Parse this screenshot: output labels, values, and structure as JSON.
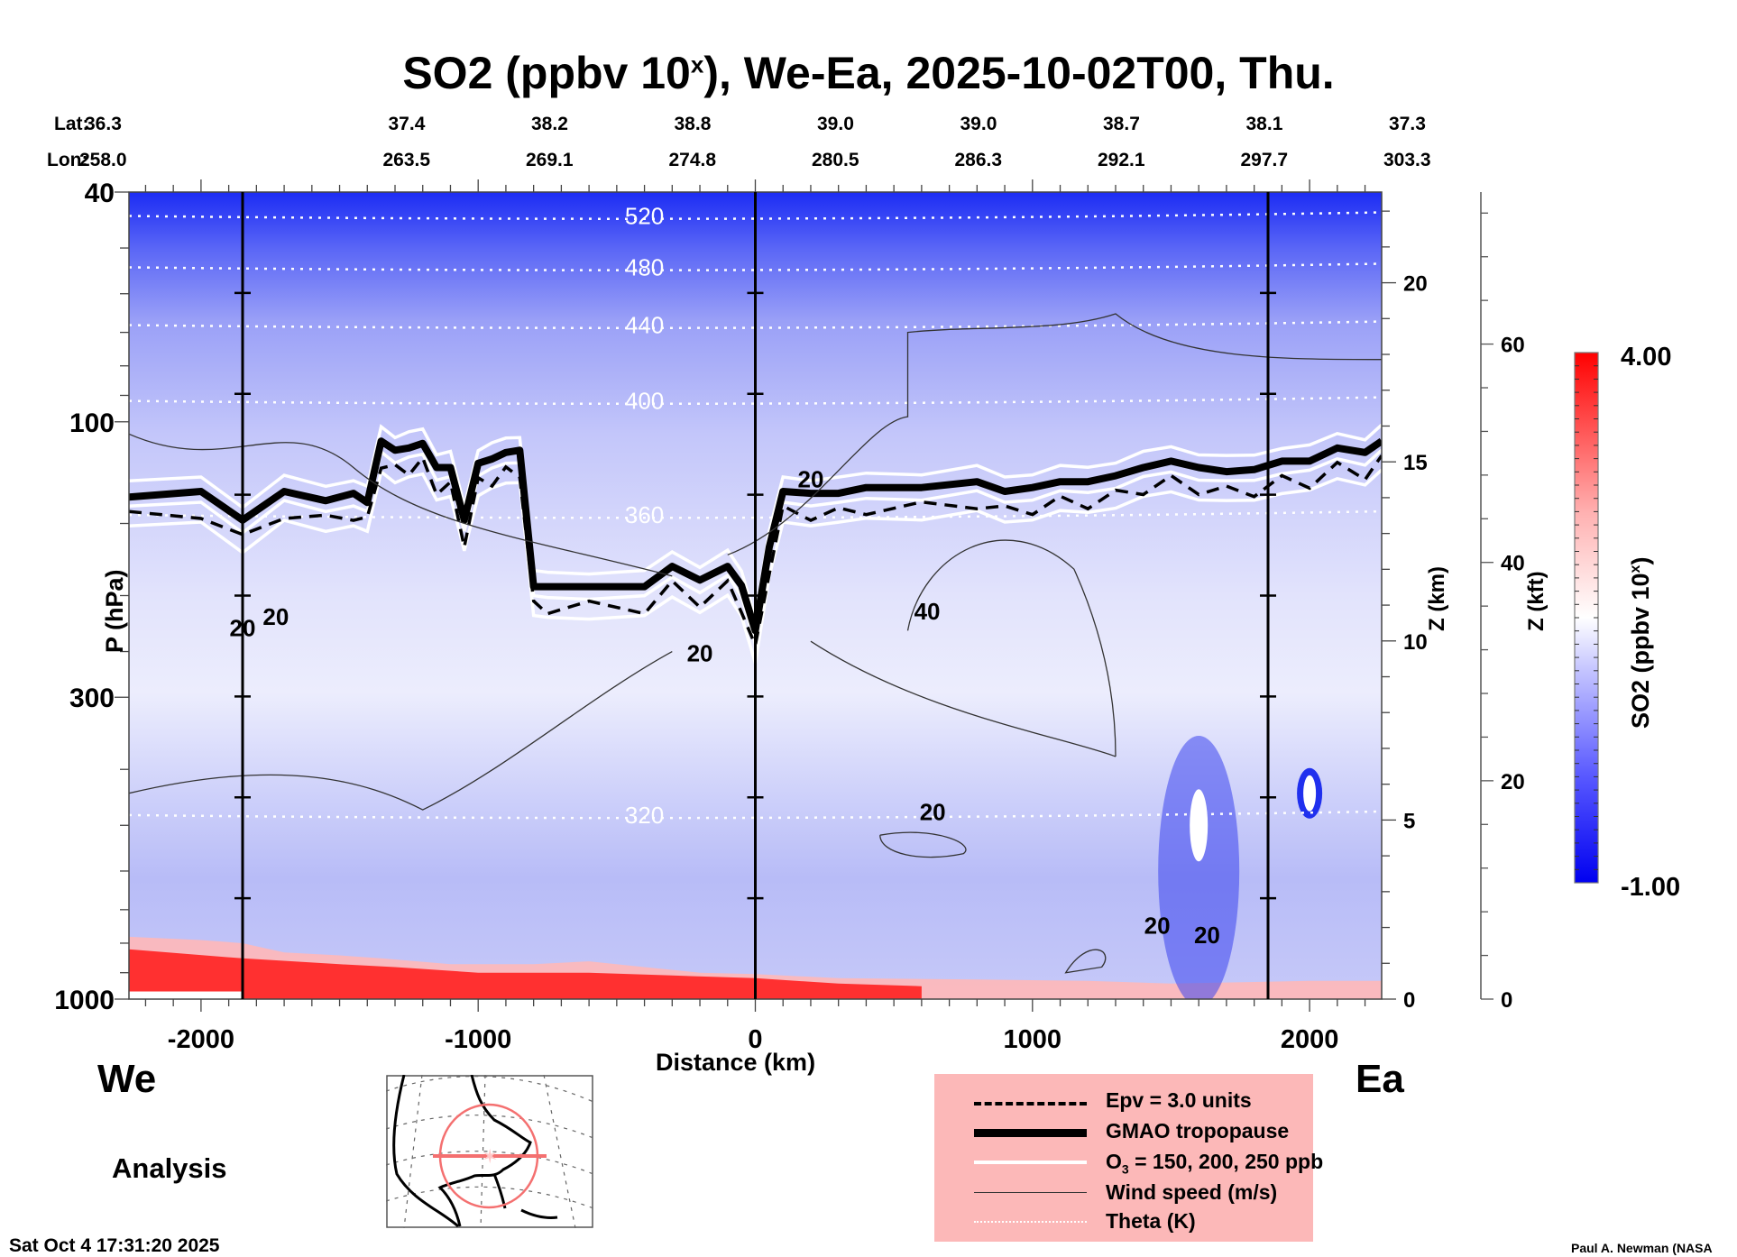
{
  "title": {
    "main": "SO2 (ppbv 10",
    "sup": "x",
    "rest": "), We-Ea, 2025-10-02T00, Thu."
  },
  "latlon": {
    "lat_label": "Lat:",
    "lon_label": "Lon:",
    "points": [
      {
        "distance_km": -2260,
        "lat": "36.3",
        "lon": "258.0"
      },
      {
        "distance_km": -1695,
        "lat": "37.4",
        "lon": "263.5"
      },
      {
        "distance_km": -1130,
        "lat": "38.2",
        "lon": "269.1"
      },
      {
        "distance_km": -565,
        "lat": "38.8",
        "lon": "274.8"
      },
      {
        "distance_km": 0,
        "lat": "39.0",
        "lon": "280.5"
      },
      {
        "distance_km": 565,
        "lat": "39.0",
        "lon": "286.3"
      },
      {
        "distance_km": 1130,
        "lat": "38.7",
        "lon": "292.1"
      },
      {
        "distance_km": 1695,
        "lat": "38.1",
        "lon": "297.7"
      },
      {
        "distance_km": 2260,
        "lat": "37.3",
        "lon": "303.3"
      }
    ]
  },
  "labels": {
    "left_end": "We",
    "right_end": "Ea",
    "analysis": "Analysis",
    "timestamp": "Sat Oct  4 17:31:20 2025",
    "credit": "Paul A. Newman (NASA"
  },
  "chart_data": {
    "type": "heatmap",
    "title": "SO2 (ppbv 10^x), We-Ea, 2025-10-02T00, Thu.",
    "xlabel": "Distance (km)",
    "ylabel": "P (hPa)",
    "y2label": "Z (km)",
    "y3label": "Z (kft)",
    "xlim": [
      -2260,
      2260
    ],
    "ylim": [
      1000,
      40
    ],
    "yscale": "log",
    "x_ticks": [
      -2000,
      -1000,
      0,
      1000,
      2000
    ],
    "y_ticks": [
      40,
      100,
      300,
      1000
    ],
    "z_km_ticks": [
      0,
      5,
      10,
      15,
      20
    ],
    "z_kft_ticks": [
      0,
      20,
      40,
      60
    ],
    "vertical_markers_km": [
      -1850,
      0,
      1850
    ],
    "colorbar": {
      "label": "SO2 (ppbv 10^x)",
      "min": "-1.00",
      "max": "4.00",
      "min_color": "#0000ff",
      "mid_color": "#ffffff",
      "max_color": "#ff0000"
    },
    "theta_contours": [
      {
        "label": "520",
        "p_hPa": 44
      },
      {
        "label": "480",
        "p_hPa": 54
      },
      {
        "label": "440",
        "p_hPa": 68
      },
      {
        "label": "400",
        "p_hPa": 92
      },
      {
        "label": "360",
        "p_hPa": 145
      },
      {
        "label": "320",
        "p_hPa": 480
      }
    ],
    "tropopause": {
      "name": "GMAO tropopause",
      "x": [
        -2260,
        -2000,
        -1850,
        -1700,
        -1550,
        -1450,
        -1400,
        -1350,
        -1300,
        -1250,
        -1200,
        -1150,
        -1100,
        -1050,
        -1000,
        -950,
        -900,
        -850,
        -800,
        -750,
        -600,
        -400,
        -300,
        -200,
        -100,
        -50,
        0,
        50,
        100,
        200,
        300,
        400,
        600,
        800,
        900,
        1000,
        1100,
        1200,
        1300,
        1400,
        1500,
        1600,
        1700,
        1800,
        1900,
        2000,
        2100,
        2200,
        2260
      ],
      "p_hPa": [
        135,
        132,
        148,
        132,
        137,
        133,
        138,
        108,
        112,
        111,
        109,
        120,
        120,
        148,
        118,
        116,
        113,
        112,
        193,
        193,
        193,
        193,
        178,
        188,
        178,
        192,
        230,
        165,
        132,
        133,
        133,
        130,
        130,
        127,
        132,
        130,
        127,
        127,
        124,
        120,
        117,
        120,
        122,
        121,
        117,
        117,
        111,
        113,
        108
      ]
    },
    "contour_labels": [
      {
        "text": "20",
        "series": "wind",
        "x_km": -1850,
        "p_hPa": 235
      },
      {
        "text": "20",
        "series": "wind",
        "x_km": -1730,
        "p_hPa": 225
      },
      {
        "text": "20",
        "series": "wind",
        "x_km": -200,
        "p_hPa": 260
      },
      {
        "text": "20",
        "series": "wind",
        "x_km": 200,
        "p_hPa": 130
      },
      {
        "text": "40",
        "series": "wind",
        "x_km": 620,
        "p_hPa": 220
      },
      {
        "text": "20",
        "series": "wind",
        "x_km": 640,
        "p_hPa": 490
      },
      {
        "text": "20",
        "series": "wind",
        "x_km": 1450,
        "p_hPa": 770
      },
      {
        "text": "20",
        "series": "wind",
        "x_km": 1630,
        "p_hPa": 800
      }
    ],
    "legend": [
      {
        "label": "Epv = 3.0 units",
        "style": "dashed"
      },
      {
        "label": "GMAO tropopause",
        "style": "thick"
      },
      {
        "label_pre": "O",
        "label_sub": "3",
        "label_post": " = 150, 200, 250 ppb",
        "style": "white"
      },
      {
        "label": "Wind speed (m/s)",
        "style": "thin"
      },
      {
        "label": "Theta (K)",
        "style": "dotted"
      }
    ],
    "legend_position": "bottom-right"
  }
}
